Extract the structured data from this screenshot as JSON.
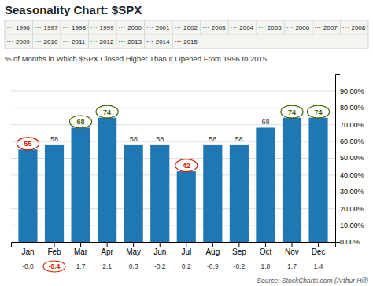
{
  "chart_data": {
    "type": "bar",
    "title": "Seasonality Chart: $SPX",
    "subtitle": "% of Months in Which $SPX Closed Higher Than It Opened From 1996 to 2015",
    "source": "Source: StockCharts.com (Arthur Hill)",
    "legend_entries": [
      {
        "name": "1996",
        "color": "#cc99aa"
      },
      {
        "name": "1997",
        "color": "#66bb66"
      },
      {
        "name": "1998",
        "color": "#999999"
      },
      {
        "name": "1999",
        "color": "#66bb66"
      },
      {
        "name": "2000",
        "color": "#999999"
      },
      {
        "name": "2001",
        "color": "#6699cc"
      },
      {
        "name": "2002",
        "color": "#999999"
      },
      {
        "name": "2003",
        "color": "#6699cc"
      },
      {
        "name": "2004",
        "color": "#999999"
      },
      {
        "name": "2005",
        "color": "#66bb66"
      },
      {
        "name": "2006",
        "color": "#6699cc"
      },
      {
        "name": "2007",
        "color": "#cc6666"
      },
      {
        "name": "2008",
        "color": "#cc9966"
      },
      {
        "name": "2009",
        "color": "#9966cc"
      },
      {
        "name": "2010",
        "color": "#6699cc"
      },
      {
        "name": "2011",
        "color": "#999999"
      },
      {
        "name": "2012",
        "color": "#66bb66"
      },
      {
        "name": "2013",
        "color": "#009966"
      },
      {
        "name": "2014",
        "color": "#336699"
      },
      {
        "name": "2015",
        "color": "#cc3333"
      }
    ],
    "categories": [
      "Jan",
      "Feb",
      "Mar",
      "Apr",
      "May",
      "Jun",
      "Jul",
      "Aug",
      "Sep",
      "Oct",
      "Nov",
      "Dec"
    ],
    "values": [
      55,
      58,
      68,
      74,
      58,
      58,
      42,
      58,
      58,
      68,
      74,
      74
    ],
    "data_labels": true,
    "label_colors": [
      "#cc2200",
      null,
      "#446600",
      "#446600",
      null,
      null,
      "#cc2200",
      null,
      null,
      null,
      "#446600",
      "#446600"
    ],
    "avg_returns": [
      "-0.0",
      "-0.4",
      "1.7",
      "2.1",
      "0.3",
      "-0.2",
      "0.2",
      "-0.9",
      "-0.2",
      "1.8",
      "1.7",
      "1.4"
    ],
    "avg_label_colors": [
      null,
      "#cc2200",
      null,
      null,
      null,
      null,
      null,
      null,
      null,
      null,
      null,
      null
    ],
    "ylim": [
      0,
      100
    ],
    "yticks": [
      {
        "value": 0,
        "label": "0.00%"
      },
      {
        "value": 10,
        "label": "10.00%"
      },
      {
        "value": 20,
        "label": "20.00%"
      },
      {
        "value": 30,
        "label": "30.00%"
      },
      {
        "value": 40,
        "label": "40.00%"
      },
      {
        "value": 50,
        "label": "50.00%"
      },
      {
        "value": 60,
        "label": "60.00%"
      },
      {
        "value": 70,
        "label": "70.00%"
      },
      {
        "value": 80,
        "label": "80.00%"
      },
      {
        "value": 90,
        "label": "90.00%"
      }
    ],
    "grid": true
  }
}
